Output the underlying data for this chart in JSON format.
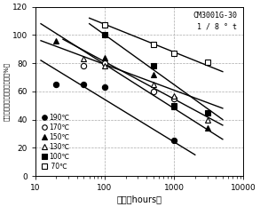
{
  "title": "CM3001G-30\n1 / 8 ° t",
  "xlabel": "时间（hours）",
  "ylabel": "冲击强度（无缺口）保留率（%）",
  "xlim": [
    10,
    10000
  ],
  "ylim": [
    0,
    120
  ],
  "yticks": [
    0,
    20,
    40,
    60,
    80,
    100,
    120
  ],
  "series": [
    {
      "label": "190℃",
      "marker": "o",
      "fillstyle": "full",
      "x": [
        20,
        50,
        100,
        1000
      ],
      "y": [
        65,
        65,
        63,
        25
      ],
      "fit_x": [
        12,
        2000
      ],
      "fit_y": [
        82,
        15
      ]
    },
    {
      "label": "170℃",
      "marker": "o",
      "fillstyle": "none",
      "x": [
        50,
        100,
        500,
        1000
      ],
      "y": [
        78,
        80,
        60,
        55
      ],
      "fit_x": [
        12,
        5000
      ],
      "fit_y": [
        96,
        48
      ]
    },
    {
      "label": "150℃",
      "marker": "^",
      "fillstyle": "full",
      "x": [
        20,
        100,
        500,
        1000,
        3000
      ],
      "y": [
        96,
        84,
        72,
        49,
        34
      ],
      "fit_x": [
        12,
        5000
      ],
      "fit_y": [
        108,
        26
      ]
    },
    {
      "label": "130℃",
      "marker": "^",
      "fillstyle": "none",
      "x": [
        50,
        100,
        500,
        1000,
        3000
      ],
      "y": [
        83,
        78,
        65,
        57,
        40
      ],
      "fit_x": [
        25,
        5000
      ],
      "fit_y": [
        97,
        36
      ]
    },
    {
      "label": "100℃",
      "marker": "s",
      "fillstyle": "full",
      "x": [
        100,
        500,
        1000,
        3000
      ],
      "y": [
        100,
        78,
        50,
        45
      ],
      "fit_x": [
        60,
        5000
      ],
      "fit_y": [
        108,
        40
      ]
    },
    {
      "label": " 70℃",
      "marker": "s",
      "fillstyle": "none",
      "x": [
        100,
        500,
        1000,
        3000
      ],
      "y": [
        107,
        93,
        87,
        81
      ],
      "fit_x": [
        60,
        5000
      ],
      "fit_y": [
        112,
        74
      ]
    }
  ],
  "background_color": "#ffffff",
  "grid_color": "#aaaaaa"
}
